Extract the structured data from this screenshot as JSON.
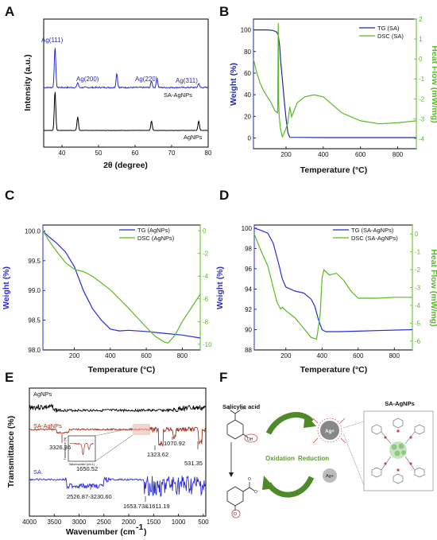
{
  "colors": {
    "navy": "#1f2a9e",
    "blue": "#2b2bd6",
    "green": "#55bb22",
    "red": "#a33218",
    "black": "#000000",
    "peak_label": "#2b2b9e"
  },
  "chart_data": [
    {
      "panel": "A",
      "type": "line",
      "xlabel": "2θ (degree)",
      "ylabel": "Intensity (a.u.)",
      "xlim": [
        35,
        80
      ],
      "xticks": [
        40,
        50,
        60,
        70,
        80
      ],
      "peak_labels": [
        "Ag(111)",
        "Ag(200)",
        "Ag(220)",
        "Ag(311)"
      ],
      "series": [
        {
          "name": "SA-AgNPs",
          "color": "#2b2bd6",
          "peaks": [
            {
              "x": 38.1,
              "h": 1.0
            },
            {
              "x": 44.3,
              "h": 0.12
            },
            {
              "x": 55.0,
              "h": 0.35
            },
            {
              "x": 64.5,
              "h": 0.16
            },
            {
              "x": 66.0,
              "h": 0.22
            },
            {
              "x": 77.4,
              "h": 0.1
            }
          ]
        },
        {
          "name": "AgNPs",
          "color": "#000000",
          "peaks": [
            {
              "x": 38.1,
              "h": 1.0
            },
            {
              "x": 44.3,
              "h": 0.34
            },
            {
              "x": 64.5,
              "h": 0.24
            },
            {
              "x": 77.4,
              "h": 0.24
            }
          ]
        }
      ]
    },
    {
      "panel": "B",
      "type": "line",
      "xlabel": "Temperature (°C)",
      "ylabel": "Weight (%)",
      "y2label": "Heat Flow (mW/mg)",
      "xlim": [
        25,
        900
      ],
      "ylim": [
        -10,
        110
      ],
      "y2lim": [
        -4.5,
        2
      ],
      "xticks": [
        200,
        400,
        600,
        800
      ],
      "yticks": [
        0,
        20,
        40,
        60,
        80,
        100
      ],
      "y2ticks": [
        -4,
        -3,
        -2,
        -1,
        0,
        1,
        2
      ],
      "legend": [
        "TG (SA)",
        "DSC (SA)"
      ],
      "series": [
        {
          "name": "TG (SA)",
          "axis": "left",
          "color": "#1f2a9e",
          "x": [
            25,
            100,
            130,
            150,
            158,
            166,
            172,
            180,
            190,
            200,
            210,
            220,
            400,
            600,
            900
          ],
          "y": [
            100,
            100,
            99.5,
            98,
            95,
            85,
            70,
            55,
            35,
            18,
            5,
            0.5,
            0.3,
            0.3,
            0.3
          ]
        },
        {
          "name": "DSC (SA)",
          "axis": "right",
          "color": "#55bb22",
          "x": [
            25,
            40,
            60,
            80,
            100,
            120,
            140,
            155,
            158,
            160,
            163,
            166,
            170,
            180,
            195,
            210,
            220,
            230,
            260,
            300,
            350,
            400,
            450,
            500,
            600,
            700,
            800,
            900
          ],
          "y": [
            0,
            -0.6,
            -1.2,
            -1.6,
            -1.9,
            -2.2,
            -2.6,
            -2.7,
            1.8,
            -2.0,
            -2.8,
            -3.1,
            -3.5,
            -3.9,
            -3.6,
            -3.2,
            -2.4,
            -2.9,
            -2.2,
            -1.9,
            -1.8,
            -1.9,
            -2.3,
            -2.7,
            -3.1,
            -3.25,
            -3.2,
            -3.1
          ]
        }
      ]
    },
    {
      "panel": "C",
      "type": "line",
      "xlabel": "Temperature (°C)",
      "ylabel": "Weight (%)",
      "xlim": [
        25,
        900
      ],
      "ylim": [
        98.0,
        100.1
      ],
      "y2lim": [
        -10.5,
        0.5
      ],
      "xticks": [
        200,
        400,
        600,
        800
      ],
      "yticks": [
        98.0,
        98.5,
        99.0,
        99.5,
        100.0
      ],
      "y2ticks": [
        -10,
        -8,
        -6,
        -4,
        -2,
        0
      ],
      "legend": [
        "TG (AgNPs)",
        "DSC (AgNPs)"
      ],
      "series": [
        {
          "name": "TG (AgNPs)",
          "axis": "left",
          "color": "#2b2bd6",
          "x": [
            25,
            60,
            100,
            150,
            200,
            250,
            300,
            350,
            400,
            450,
            500,
            600,
            700,
            800,
            900
          ],
          "y": [
            100.0,
            99.9,
            99.8,
            99.65,
            99.4,
            99.0,
            98.7,
            98.5,
            98.35,
            98.32,
            98.33,
            98.31,
            98.28,
            98.25,
            98.2
          ]
        },
        {
          "name": "DSC (AgNPs)",
          "axis": "right",
          "color": "#55bb22",
          "x": [
            25,
            60,
            100,
            150,
            200,
            250,
            300,
            400,
            500,
            600,
            650,
            700,
            720,
            760,
            800,
            850,
            900
          ],
          "y": [
            0,
            -0.9,
            -1.8,
            -2.8,
            -3.4,
            -3.6,
            -4.0,
            -5.2,
            -6.8,
            -8.5,
            -9.3,
            -9.8,
            -9.9,
            -9.2,
            -8.0,
            -6.8,
            -5.6
          ]
        }
      ]
    },
    {
      "panel": "D",
      "type": "line",
      "xlabel": "Temperature (°C)",
      "ylabel": "Weight (%)",
      "y2label": "Heat Flow (mW/mg)",
      "xlim": [
        25,
        900
      ],
      "ylim": [
        88,
        100.3
      ],
      "y2lim": [
        -6.5,
        0.5
      ],
      "xticks": [
        200,
        400,
        600,
        800
      ],
      "yticks": [
        88,
        90,
        92,
        94,
        96,
        98,
        100
      ],
      "y2ticks": [
        -6,
        -5,
        -4,
        -3,
        -2,
        -1,
        0
      ],
      "legend": [
        "TG (SA-AgNPs)",
        "DSC (SA-AgNPs)"
      ],
      "series": [
        {
          "name": "TG (SA-AgNPs)",
          "axis": "left",
          "color": "#2b2bd6",
          "x": [
            25,
            60,
            100,
            130,
            160,
            180,
            200,
            250,
            300,
            340,
            360,
            380,
            400,
            420,
            450,
            500,
            600,
            700,
            900
          ],
          "y": [
            100,
            99.8,
            99.5,
            98.5,
            96.5,
            95,
            94.2,
            93.8,
            93.6,
            93.0,
            92.3,
            91.0,
            90.0,
            89.8,
            89.8,
            89.8,
            89.85,
            89.9,
            90.0
          ]
        },
        {
          "name": "DSC (SA-AgNPs)",
          "axis": "right",
          "color": "#55bb22",
          "x": [
            25,
            60,
            100,
            130,
            150,
            170,
            180,
            200,
            250,
            300,
            340,
            370,
            390,
            400,
            410,
            420,
            440,
            480,
            520,
            560,
            600,
            700,
            800,
            900
          ],
          "y": [
            0,
            -0.9,
            -1.8,
            -3.0,
            -3.8,
            -4.2,
            -4.1,
            -4.3,
            -4.7,
            -5.3,
            -5.8,
            -5.9,
            -4.5,
            -2.5,
            -2.0,
            -2.1,
            -2.3,
            -2.2,
            -2.6,
            -3.2,
            -3.6,
            -3.6,
            -3.55,
            -3.55
          ]
        }
      ]
    },
    {
      "panel": "E",
      "type": "line",
      "xlabel": "Wavenumber (cm",
      "xlabel_sup": "-1",
      "xlabel_end": ")",
      "ylabel": "Transmittance (%)",
      "xlim": [
        4000,
        450
      ],
      "xticks": [
        4000,
        3500,
        3000,
        2500,
        2000,
        1500,
        1000,
        500
      ],
      "annotations": [
        "3326.36",
        "1323.62",
        "1070.92",
        "531.35",
        "2526.87-3230.60",
        "1653.73&1611.19",
        "1650.52"
      ],
      "inset_xlabel": "Wavenumber (cm-1)",
      "inset_ylabel": "Transmittance (%)",
      "series": [
        {
          "name": "AgNPs",
          "color": "#000000",
          "x": [],
          "y": []
        },
        {
          "name": "SA-AgNPs",
          "color": "#a33218",
          "x": [],
          "y": []
        },
        {
          "name": "SA",
          "color": "#2b2bd6",
          "x": [],
          "y": []
        }
      ]
    }
  ],
  "panel_labels": [
    "A",
    "B",
    "C",
    "D",
    "E",
    "F"
  ],
  "scheme": {
    "title": "Salicylic acid",
    "oxidation": "Oxidation",
    "reduction": "Reduction",
    "ag_ion": "Ag+",
    "ag_ion_2": "Ag+",
    "product": "SA-AgNPs"
  }
}
